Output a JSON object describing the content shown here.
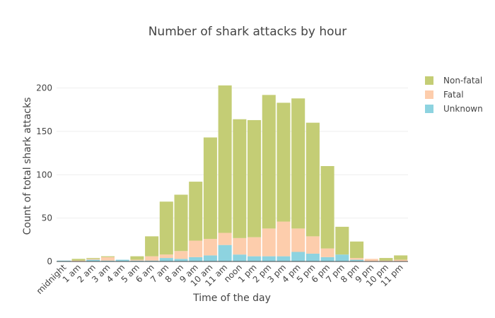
{
  "chart_data": {
    "type": "bar",
    "stacked": true,
    "title": "Number of shark attacks by hour",
    "xlabel": "Time of the day",
    "ylabel": "Count of total shark attacks",
    "ylim": [
      0,
      220
    ],
    "yticks": [
      0,
      50,
      100,
      150,
      200
    ],
    "grid": true,
    "legend_position": "top-right",
    "categories": [
      "midnight",
      "1 am",
      "2 am",
      "3 am",
      "4 am",
      "5 am",
      "6 am",
      "7 am",
      "8 am",
      "9 am",
      "10 am",
      "11 am",
      "noon",
      "1 pm",
      "2 pm",
      "3 pm",
      "4 pm",
      "5 pm",
      "6 pm",
      "7 pm",
      "8 pm",
      "9 pm",
      "10 pm",
      "11 pm"
    ],
    "series": [
      {
        "name": "Unknown",
        "color": "#8dd3e0",
        "values": [
          1,
          0,
          2,
          1,
          2,
          1,
          1,
          4,
          3,
          5,
          7,
          19,
          8,
          6,
          6,
          6,
          11,
          9,
          5,
          8,
          2,
          0,
          0,
          0
        ]
      },
      {
        "name": "Fatal",
        "color": "#fdcdac",
        "values": [
          0,
          1,
          1,
          4,
          0,
          1,
          5,
          4,
          9,
          19,
          19,
          14,
          19,
          22,
          32,
          40,
          27,
          20,
          10,
          0,
          2,
          3,
          1,
          2
        ]
      },
      {
        "name": "Non-fatal",
        "color": "#c4cd75",
        "values": [
          0,
          2,
          1,
          1,
          0,
          4,
          23,
          61,
          65,
          68,
          117,
          170,
          137,
          135,
          154,
          137,
          150,
          131,
          95,
          32,
          19,
          0,
          3,
          5
        ]
      }
    ],
    "legend_order": [
      "Non-fatal",
      "Fatal",
      "Unknown"
    ]
  }
}
